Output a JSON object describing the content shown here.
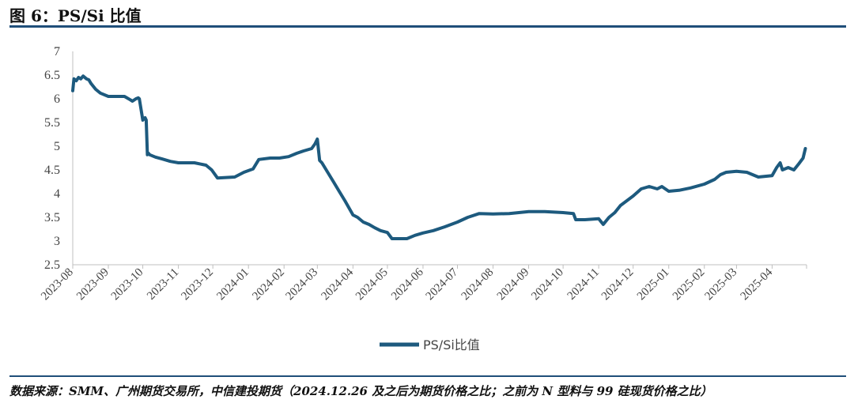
{
  "header": {
    "title": "图 6：PS/Si 比值"
  },
  "footer": {
    "source": "数据来源：SMM、广州期货交易所，中信建投期货（2024.12.26 及之后为期货价格之比；之前为 N 型料与 99 硅现货价格之比）"
  },
  "colors": {
    "line": "#1d5a7e",
    "rule": "#1f4e79",
    "axis": "#bfbfbf"
  },
  "chart_data": {
    "type": "line",
    "title": "",
    "xlabel": "",
    "ylabel": "",
    "ylim": [
      2.5,
      7
    ],
    "yticks": [
      "2.5",
      "3",
      "3.5",
      "4",
      "4.5",
      "5",
      "5.5",
      "6",
      "6.5",
      "7"
    ],
    "xticks": [
      "2023-08",
      "2023-09",
      "2023-10",
      "2023-11",
      "2023-12",
      "2024-01",
      "2024-02",
      "2024-03",
      "2024-04",
      "2024-05",
      "2024-06",
      "2024-07",
      "2024-08",
      "2024-09",
      "2024-10",
      "2024-11",
      "2024-12",
      "2025-01",
      "2025-02",
      "2025-03",
      "2025-04"
    ],
    "xlim": [
      "2023-08-01",
      "2025-05-01"
    ],
    "grid": false,
    "legend_position": "bottom-center",
    "series": [
      {
        "name": "PS/Si比值",
        "x": [
          "2023-08-01",
          "2023-08-02",
          "2023-08-04",
          "2023-08-06",
          "2023-08-08",
          "2023-08-10",
          "2023-08-13",
          "2023-08-15",
          "2023-08-17",
          "2023-08-21",
          "2023-08-25",
          "2023-09-01",
          "2023-09-10",
          "2023-09-15",
          "2023-09-20",
          "2023-09-22",
          "2023-09-25",
          "2023-09-27",
          "2023-09-28",
          "2023-10-01",
          "2023-10-03",
          "2023-10-04",
          "2023-10-05",
          "2023-10-06",
          "2023-10-07",
          "2023-10-12",
          "2023-10-18",
          "2023-10-25",
          "2023-11-01",
          "2023-11-15",
          "2023-11-25",
          "2023-11-30",
          "2023-12-05",
          "2023-12-20",
          "2023-12-28",
          "2024-01-05",
          "2024-01-10",
          "2024-01-20",
          "2024-01-28",
          "2024-02-05",
          "2024-02-12",
          "2024-02-18",
          "2024-02-25",
          "2024-02-28",
          "2024-03-01",
          "2024-03-03",
          "2024-03-05",
          "2024-03-10",
          "2024-03-15",
          "2024-03-20",
          "2024-03-25",
          "2024-04-01",
          "2024-04-05",
          "2024-04-10",
          "2024-04-15",
          "2024-04-20",
          "2024-04-25",
          "2024-05-01",
          "2024-05-05",
          "2024-05-10",
          "2024-05-18",
          "2024-05-25",
          "2024-06-01",
          "2024-06-10",
          "2024-06-20",
          "2024-07-01",
          "2024-07-10",
          "2024-07-20",
          "2024-08-01",
          "2024-08-15",
          "2024-09-01",
          "2024-09-15",
          "2024-10-01",
          "2024-10-10",
          "2024-10-12",
          "2024-10-20",
          "2024-11-01",
          "2024-11-05",
          "2024-11-10",
          "2024-11-15",
          "2024-11-20",
          "2024-12-01",
          "2024-12-08",
          "2024-12-15",
          "2024-12-22",
          "2024-12-26",
          "2025-01-01",
          "2025-01-10",
          "2025-01-20",
          "2025-02-01",
          "2025-02-10",
          "2025-02-15",
          "2025-02-20",
          "2025-03-01",
          "2025-03-10",
          "2025-03-15",
          "2025-03-20",
          "2025-04-01",
          "2025-04-05",
          "2025-04-08",
          "2025-04-10",
          "2025-04-15",
          "2025-04-20",
          "2025-04-24",
          "2025-04-28",
          "2025-04-30"
        ],
        "values": [
          6.17,
          6.42,
          6.38,
          6.45,
          6.42,
          6.48,
          6.42,
          6.4,
          6.32,
          6.2,
          6.12,
          6.05,
          6.05,
          6.05,
          5.98,
          5.95,
          6.0,
          6.02,
          6.0,
          5.55,
          5.6,
          5.55,
          4.82,
          4.85,
          4.82,
          4.77,
          4.73,
          4.68,
          4.65,
          4.65,
          4.6,
          4.5,
          4.33,
          4.35,
          4.45,
          4.52,
          4.72,
          4.75,
          4.75,
          4.78,
          4.85,
          4.9,
          4.95,
          5.05,
          5.15,
          4.7,
          4.65,
          4.45,
          4.25,
          4.05,
          3.85,
          3.55,
          3.5,
          3.4,
          3.35,
          3.28,
          3.22,
          3.18,
          3.05,
          3.05,
          3.05,
          3.12,
          3.17,
          3.22,
          3.3,
          3.4,
          3.5,
          3.58,
          3.57,
          3.58,
          3.62,
          3.62,
          3.6,
          3.58,
          3.45,
          3.45,
          3.47,
          3.35,
          3.5,
          3.6,
          3.75,
          3.95,
          4.1,
          4.15,
          4.1,
          4.15,
          4.05,
          4.07,
          4.12,
          4.2,
          4.3,
          4.4,
          4.45,
          4.47,
          4.45,
          4.4,
          4.35,
          4.38,
          4.55,
          4.65,
          4.5,
          4.55,
          4.5,
          4.62,
          4.75,
          4.95
        ]
      }
    ]
  }
}
